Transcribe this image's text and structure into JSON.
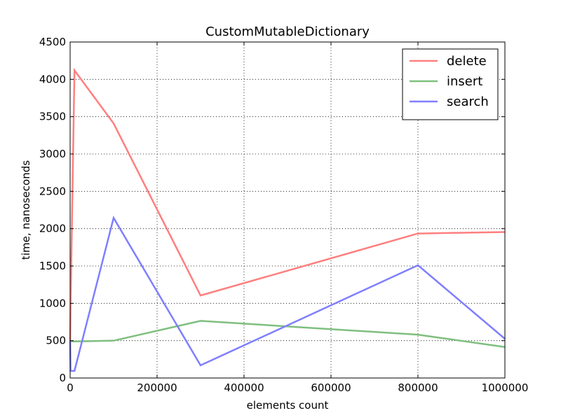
{
  "chart_data": {
    "type": "line",
    "title": "CustomMutableDictionary",
    "xlabel": "elements count",
    "ylabel": "time, nanoseconds",
    "xlim": [
      0,
      1000000
    ],
    "ylim": [
      0,
      4500
    ],
    "xticks": [
      0,
      200000,
      400000,
      600000,
      800000,
      1000000
    ],
    "yticks": [
      0,
      500,
      1000,
      1500,
      2000,
      2500,
      3000,
      3500,
      4000,
      4500
    ],
    "grid": true,
    "legend_position": "top-right",
    "x": [
      100,
      1000,
      10000,
      100000,
      300000,
      800000,
      1000000
    ],
    "series": [
      {
        "name": "delete",
        "color": "#ff7f7f",
        "values": [
          500,
          950,
          4120,
          3410,
          1105,
          1935,
          1955
        ]
      },
      {
        "name": "insert",
        "color": "#7fbf7f",
        "values": [
          500,
          490,
          490,
          500,
          765,
          580,
          415
        ]
      },
      {
        "name": "search",
        "color": "#7f7fff",
        "values": [
          500,
          95,
          95,
          2145,
          170,
          1510,
          525
        ]
      }
    ]
  }
}
